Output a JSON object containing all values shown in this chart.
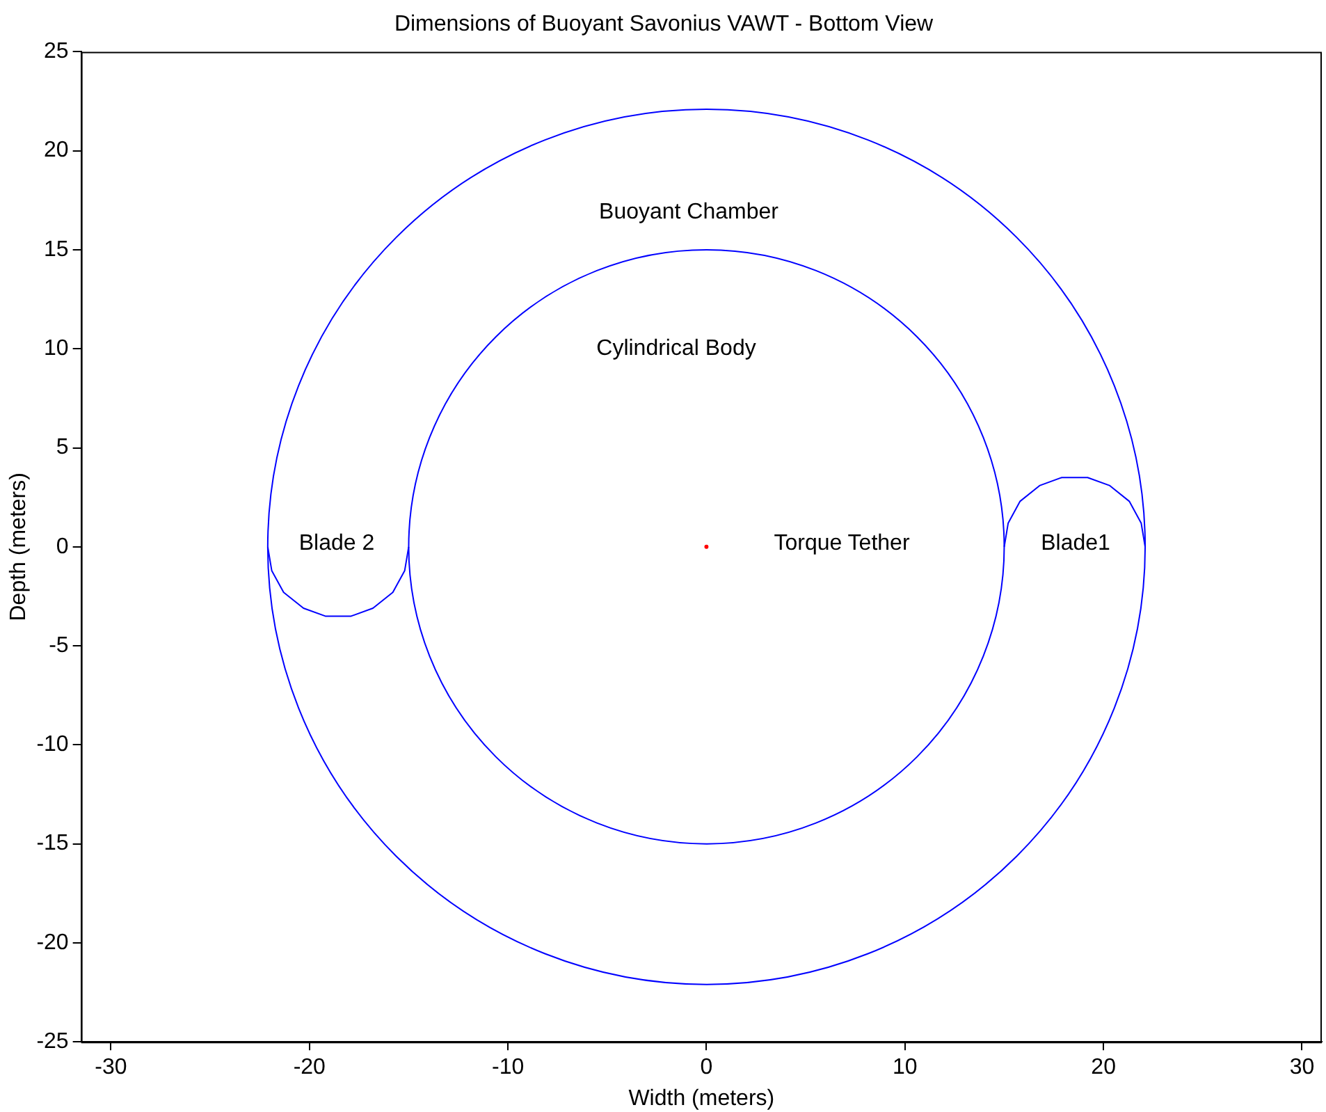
{
  "chart_data": {
    "type": "line",
    "title": "Dimensions of Buoyant Savonius VAWT - Bottom View",
    "xlabel": "Width (meters)",
    "ylabel": "Depth (meters)",
    "xlim": [
      -31.5,
      31
    ],
    "ylim": [
      -25,
      25
    ],
    "xticks": [
      -30,
      -20,
      -10,
      0,
      10,
      20,
      30
    ],
    "yticks": [
      -25,
      -20,
      -15,
      -10,
      -5,
      0,
      5,
      10,
      15,
      20,
      25
    ],
    "grid": false,
    "legend": false,
    "marker": "none",
    "line_style": "solid",
    "series": [
      {
        "color": "#0000ff",
        "x": [
          15.0,
          15.2,
          15.8,
          16.8,
          17.9,
          19.2,
          20.3,
          21.3,
          21.9,
          22.1
        ],
        "values": [
          0,
          1.2,
          2.3,
          3.1,
          3.5,
          3.5,
          3.1,
          2.3,
          1.2,
          0
        ]
      },
      {
        "color": "#0000ff",
        "x": [
          -22.1,
          -21.9,
          -21.3,
          -20.3,
          -19.2,
          -17.9,
          -16.8,
          -15.8,
          -15.2,
          -15.0
        ],
        "values": [
          0,
          -1.2,
          -2.3,
          -3.1,
          -3.5,
          -3.5,
          -3.1,
          -2.3,
          -1.2,
          0
        ]
      },
      {
        "type": "scatter",
        "marker": "circle",
        "color": "#ff0000",
        "x": [
          0
        ],
        "values": [
          0
        ]
      }
    ],
    "annotations": [
      "Buoyant Chamber",
      "Cylindrical Body",
      "Torque Tether",
      "Blade 2",
      "Blade1"
    ]
  }
}
